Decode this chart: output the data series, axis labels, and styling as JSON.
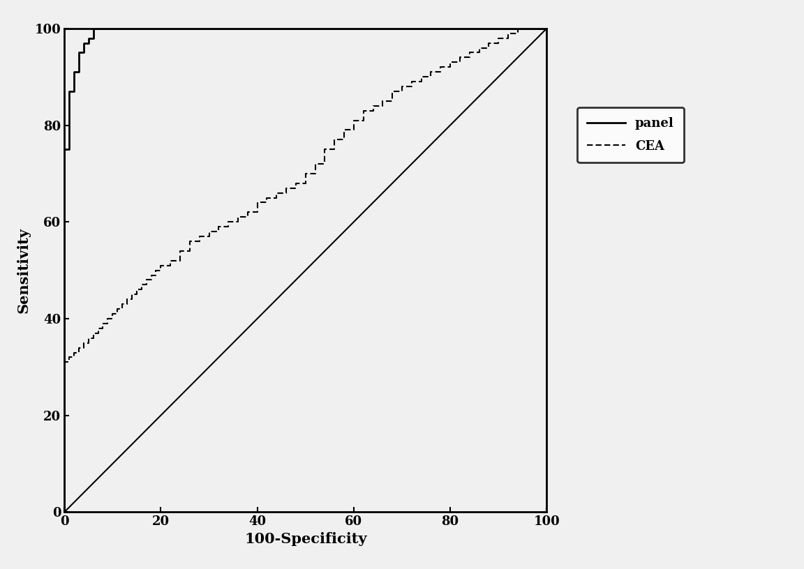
{
  "title": "",
  "xlabel": "100-Specificity",
  "ylabel": "Sensitivity",
  "xlim": [
    0,
    100
  ],
  "ylim": [
    0,
    100
  ],
  "xticks": [
    0,
    20,
    40,
    60,
    80,
    100
  ],
  "yticks": [
    0,
    20,
    40,
    60,
    80,
    100
  ],
  "panel_color": "#000000",
  "cea_color": "#000000",
  "background_color": "#f0f0f0",
  "legend_labels": [
    "panel",
    "CEA"
  ],
  "panel_points_x": [
    0,
    0,
    1,
    1,
    2,
    2,
    3,
    3,
    4,
    4,
    5,
    5,
    6,
    6,
    8,
    8,
    10,
    10,
    100
  ],
  "panel_points_y": [
    0,
    75,
    75,
    87,
    87,
    91,
    91,
    95,
    95,
    97,
    97,
    98,
    98,
    100,
    100,
    100,
    100,
    100,
    100
  ],
  "cea_points_x": [
    0,
    0,
    1,
    1,
    2,
    2,
    3,
    3,
    4,
    4,
    5,
    5,
    6,
    6,
    7,
    7,
    8,
    8,
    9,
    9,
    10,
    10,
    11,
    11,
    12,
    12,
    13,
    13,
    14,
    14,
    15,
    15,
    16,
    16,
    17,
    17,
    18,
    18,
    19,
    19,
    20,
    20,
    22,
    22,
    24,
    24,
    26,
    26,
    28,
    28,
    30,
    30,
    32,
    32,
    34,
    34,
    36,
    36,
    38,
    38,
    40,
    40,
    42,
    42,
    44,
    44,
    46,
    46,
    48,
    48,
    50,
    50,
    52,
    52,
    54,
    54,
    56,
    56,
    58,
    58,
    60,
    60,
    62,
    62,
    64,
    64,
    66,
    66,
    68,
    68,
    70,
    70,
    72,
    72,
    74,
    74,
    76,
    76,
    78,
    78,
    80,
    80,
    82,
    82,
    84,
    84,
    86,
    86,
    88,
    88,
    90,
    90,
    92,
    92,
    94,
    94,
    96,
    96,
    98,
    98,
    100
  ],
  "cea_points_y": [
    0,
    31,
    31,
    32,
    32,
    33,
    33,
    34,
    34,
    35,
    35,
    36,
    36,
    37,
    37,
    38,
    38,
    39,
    39,
    40,
    40,
    41,
    41,
    42,
    42,
    43,
    43,
    44,
    44,
    45,
    45,
    46,
    46,
    47,
    47,
    48,
    48,
    49,
    49,
    50,
    50,
    51,
    51,
    52,
    52,
    54,
    54,
    56,
    56,
    57,
    57,
    58,
    58,
    59,
    59,
    60,
    60,
    61,
    61,
    62,
    62,
    64,
    64,
    65,
    65,
    66,
    66,
    67,
    67,
    68,
    68,
    70,
    70,
    72,
    72,
    75,
    75,
    77,
    77,
    79,
    79,
    81,
    81,
    83,
    83,
    84,
    84,
    85,
    85,
    87,
    87,
    88,
    88,
    89,
    89,
    90,
    90,
    91,
    91,
    92,
    92,
    93,
    93,
    94,
    94,
    95,
    95,
    96,
    96,
    97,
    97,
    98,
    98,
    99,
    99,
    100,
    100,
    100,
    100,
    100,
    100
  ]
}
